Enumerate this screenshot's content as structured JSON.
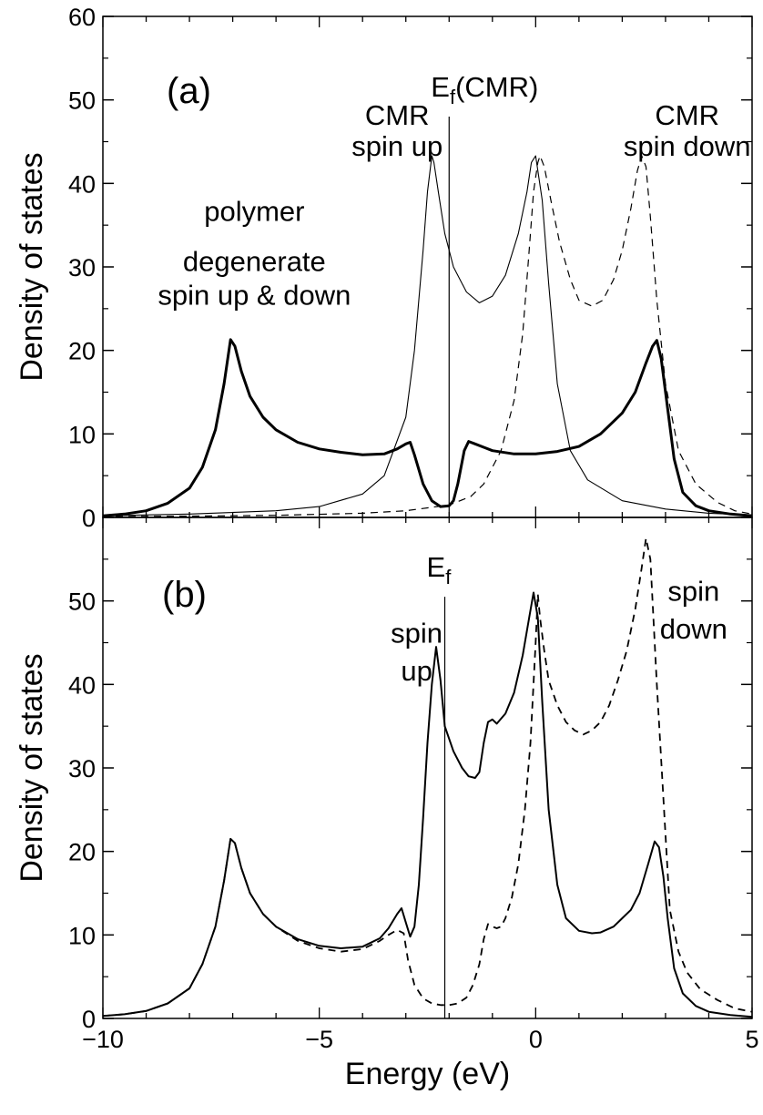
{
  "chart_data": [
    {
      "panel": "(a)",
      "type": "line",
      "xlabel": "",
      "ylabel": "Density of states",
      "xlim": [
        -10,
        5
      ],
      "ylim": [
        0,
        60
      ],
      "yticks": [
        0,
        10,
        20,
        30,
        40,
        50,
        60
      ],
      "grid": false,
      "fermi_level": {
        "x": -2.0,
        "label_main": "E",
        "label_sub": "f",
        "label_suffix": "(CMR)"
      },
      "annotations": [
        {
          "text": "CMR",
          "x": -3.2,
          "y": 47
        },
        {
          "text": "spin up",
          "x": -3.2,
          "y": 43.3
        },
        {
          "text": "CMR",
          "x": 3.5,
          "y": 47
        },
        {
          "text": "spin down",
          "x": 3.5,
          "y": 43.3
        },
        {
          "text": "polymer",
          "x": -6.5,
          "y": 35.5
        },
        {
          "text": "degenerate",
          "x": -6.5,
          "y": 29.5
        },
        {
          "text": "spin up & down",
          "x": -6.5,
          "y": 25.5
        }
      ],
      "series": [
        {
          "style": "thick-solid",
          "x": [
            -10,
            -9.5,
            -9,
            -8.5,
            -8,
            -7.7,
            -7.4,
            -7.2,
            -7.05,
            -6.95,
            -6.8,
            -6.6,
            -6.3,
            -6,
            -5.5,
            -5,
            -4.5,
            -4,
            -3.5,
            -3.2,
            -3,
            -2.9,
            -2.8,
            -2.6,
            -2.4,
            -2.2,
            -2.0,
            -1.9,
            -1.8,
            -1.65,
            -1.55,
            -1.4,
            -1.2,
            -1,
            -0.5,
            0,
            0.5,
            1,
            1.5,
            2,
            2.3,
            2.55,
            2.7,
            2.8,
            2.9,
            3.05,
            3.2,
            3.4,
            3.7,
            4,
            4.5,
            5
          ],
          "y": [
            0.2,
            0.4,
            0.8,
            1.7,
            3.5,
            6.0,
            10.5,
            16.0,
            21.3,
            20.5,
            17.5,
            14.5,
            12.0,
            10.5,
            9.0,
            8.2,
            7.8,
            7.5,
            7.6,
            8.2,
            8.8,
            9.0,
            7.5,
            4.0,
            2.0,
            1.3,
            1.4,
            2.0,
            4.0,
            8.0,
            9.1,
            8.8,
            8.4,
            8.0,
            7.6,
            7.6,
            7.9,
            8.5,
            10.0,
            12.5,
            15.0,
            18.5,
            20.5,
            21.2,
            19.0,
            13.0,
            7.0,
            3.0,
            1.4,
            0.8,
            0.4,
            0.2
          ]
        },
        {
          "style": "thin-solid",
          "x": [
            -10,
            -8,
            -6,
            -5,
            -4,
            -3.5,
            -3.0,
            -2.8,
            -2.6,
            -2.5,
            -2.4,
            -2.35,
            -2.25,
            -2.1,
            -1.9,
            -1.6,
            -1.3,
            -1.0,
            -0.7,
            -0.4,
            -0.2,
            -0.1,
            0.0,
            0.15,
            0.3,
            0.5,
            0.8,
            1.2,
            2,
            3,
            4,
            5
          ],
          "y": [
            0.2,
            0.4,
            0.8,
            1.3,
            2.8,
            5.0,
            12.0,
            20.0,
            32.0,
            39.0,
            43.3,
            42.5,
            39.0,
            34.0,
            30.0,
            27.0,
            25.7,
            26.5,
            29.0,
            34.0,
            39.0,
            42.5,
            43.3,
            38.0,
            28.0,
            16.0,
            8.0,
            4.5,
            2.0,
            1.0,
            0.5,
            0.3
          ]
        },
        {
          "style": "dashed",
          "x": [
            -10,
            -8,
            -6,
            -4,
            -3,
            -2,
            -1.5,
            -1.2,
            -0.8,
            -0.5,
            -0.3,
            -0.15,
            -0.05,
            0.05,
            0.1,
            0.2,
            0.35,
            0.55,
            0.8,
            1.0,
            1.3,
            1.55,
            1.8,
            2.0,
            2.2,
            2.35,
            2.45,
            2.55,
            2.65,
            2.8,
            3.0,
            3.3,
            3.7,
            4.2,
            4.6,
            5
          ],
          "y": [
            0.1,
            0.15,
            0.25,
            0.5,
            0.8,
            1.5,
            2.5,
            4.0,
            8.0,
            14.0,
            22.0,
            32.0,
            39.0,
            42.5,
            43.3,
            42.0,
            38.0,
            33.0,
            28.5,
            26.0,
            25.3,
            26.0,
            28.5,
            32.0,
            37.0,
            41.5,
            43.3,
            42.0,
            36.0,
            26.0,
            16.0,
            8.0,
            4.0,
            1.8,
            0.8,
            0.4
          ]
        }
      ]
    },
    {
      "panel": "(b)",
      "type": "line",
      "xlabel": "Energy (eV)",
      "ylabel": "Density of states",
      "xlim": [
        -10,
        5
      ],
      "ylim": [
        0,
        60
      ],
      "yticks": [
        0,
        10,
        20,
        30,
        40,
        50
      ],
      "xticks": [
        -10,
        -5,
        0,
        5
      ],
      "xtick_labels": [
        "−10",
        "−5",
        "0",
        "5"
      ],
      "grid": false,
      "fermi_level": {
        "x": -2.1,
        "label_main": "E",
        "label_sub": "f",
        "label_suffix": ""
      },
      "annotations": [
        {
          "text": "spin",
          "x": -2.75,
          "y": 45
        },
        {
          "text": "up",
          "x": -2.75,
          "y": 40.5
        },
        {
          "text": "spin",
          "x": 3.65,
          "y": 50
        },
        {
          "text": "down",
          "x": 3.65,
          "y": 45.5
        }
      ],
      "series": [
        {
          "style": "solid",
          "x": [
            -10,
            -9.5,
            -9,
            -8.5,
            -8,
            -7.7,
            -7.4,
            -7.2,
            -7.05,
            -6.95,
            -6.8,
            -6.6,
            -6.3,
            -6,
            -5.5,
            -5,
            -4.5,
            -4,
            -3.6,
            -3.4,
            -3.2,
            -3.1,
            -3.0,
            -2.9,
            -2.8,
            -2.7,
            -2.6,
            -2.5,
            -2.4,
            -2.3,
            -2.2,
            -2.1,
            -1.9,
            -1.7,
            -1.55,
            -1.4,
            -1.3,
            -1.2,
            -1.1,
            -1.0,
            -0.9,
            -0.7,
            -0.5,
            -0.3,
            -0.15,
            -0.05,
            0.05,
            0.15,
            0.3,
            0.5,
            0.7,
            1.0,
            1.3,
            1.5,
            1.8,
            2.0,
            2.2,
            2.4,
            2.6,
            2.75,
            2.85,
            2.95,
            3.05,
            3.2,
            3.4,
            3.7,
            4.0,
            4.5,
            5
          ],
          "y": [
            0.3,
            0.5,
            0.9,
            1.8,
            3.6,
            6.5,
            11.0,
            16.5,
            21.5,
            21.0,
            18.0,
            15.0,
            12.5,
            11.0,
            9.5,
            8.7,
            8.4,
            8.6,
            9.6,
            10.8,
            12.5,
            13.2,
            11.5,
            9.8,
            11.0,
            16.0,
            24.0,
            33.0,
            40.0,
            44.5,
            40.5,
            35.0,
            32.0,
            30.0,
            29.0,
            28.8,
            29.5,
            33.0,
            35.5,
            35.8,
            35.3,
            36.5,
            39.0,
            43.5,
            48.0,
            51.0,
            48.0,
            38.0,
            25.0,
            16.0,
            12.0,
            10.5,
            10.2,
            10.3,
            11.0,
            12.0,
            13.0,
            15.0,
            18.5,
            21.2,
            20.5,
            17.0,
            12.0,
            6.0,
            3.0,
            1.5,
            0.8,
            0.4,
            0.2
          ]
        },
        {
          "style": "dashed",
          "x": [
            -10,
            -9.5,
            -9,
            -8.5,
            -8,
            -7.7,
            -7.4,
            -7.2,
            -7.05,
            -6.95,
            -6.8,
            -6.6,
            -6.3,
            -6,
            -5.5,
            -5,
            -4.5,
            -4,
            -3.6,
            -3.4,
            -3.2,
            -3.05,
            -2.95,
            -2.8,
            -2.6,
            -2.4,
            -2.2,
            -2.0,
            -1.8,
            -1.6,
            -1.45,
            -1.3,
            -1.2,
            -1.1,
            -1.0,
            -0.9,
            -0.8,
            -0.7,
            -0.55,
            -0.4,
            -0.25,
            -0.12,
            0.0,
            0.05,
            0.1,
            0.2,
            0.3,
            0.5,
            0.7,
            0.9,
            1.1,
            1.3,
            1.5,
            1.7,
            1.9,
            2.1,
            2.3,
            2.45,
            2.55,
            2.65,
            2.8,
            3.0,
            3.1,
            3.3,
            3.5,
            3.8,
            4.2,
            4.6,
            5
          ],
          "y": [
            0.3,
            0.5,
            0.9,
            1.8,
            3.6,
            6.5,
            11.0,
            16.5,
            21.5,
            21.0,
            18.0,
            15.0,
            12.5,
            11.0,
            9.3,
            8.4,
            8.0,
            8.3,
            9.3,
            10.0,
            10.6,
            10.2,
            7.0,
            4.0,
            2.4,
            1.8,
            1.6,
            1.6,
            1.8,
            2.5,
            4.0,
            6.5,
            9.5,
            11.3,
            11.0,
            10.8,
            11.0,
            12.0,
            14.5,
            18.5,
            25.0,
            33.0,
            45.0,
            50.8,
            48.0,
            44.0,
            40.5,
            37.5,
            35.5,
            34.5,
            34.0,
            34.5,
            35.5,
            37.5,
            40.5,
            44.0,
            49.0,
            54.0,
            57.5,
            55.0,
            40.0,
            22.0,
            13.0,
            8.0,
            5.5,
            3.5,
            2.2,
            1.2,
            0.8
          ]
        }
      ]
    }
  ]
}
